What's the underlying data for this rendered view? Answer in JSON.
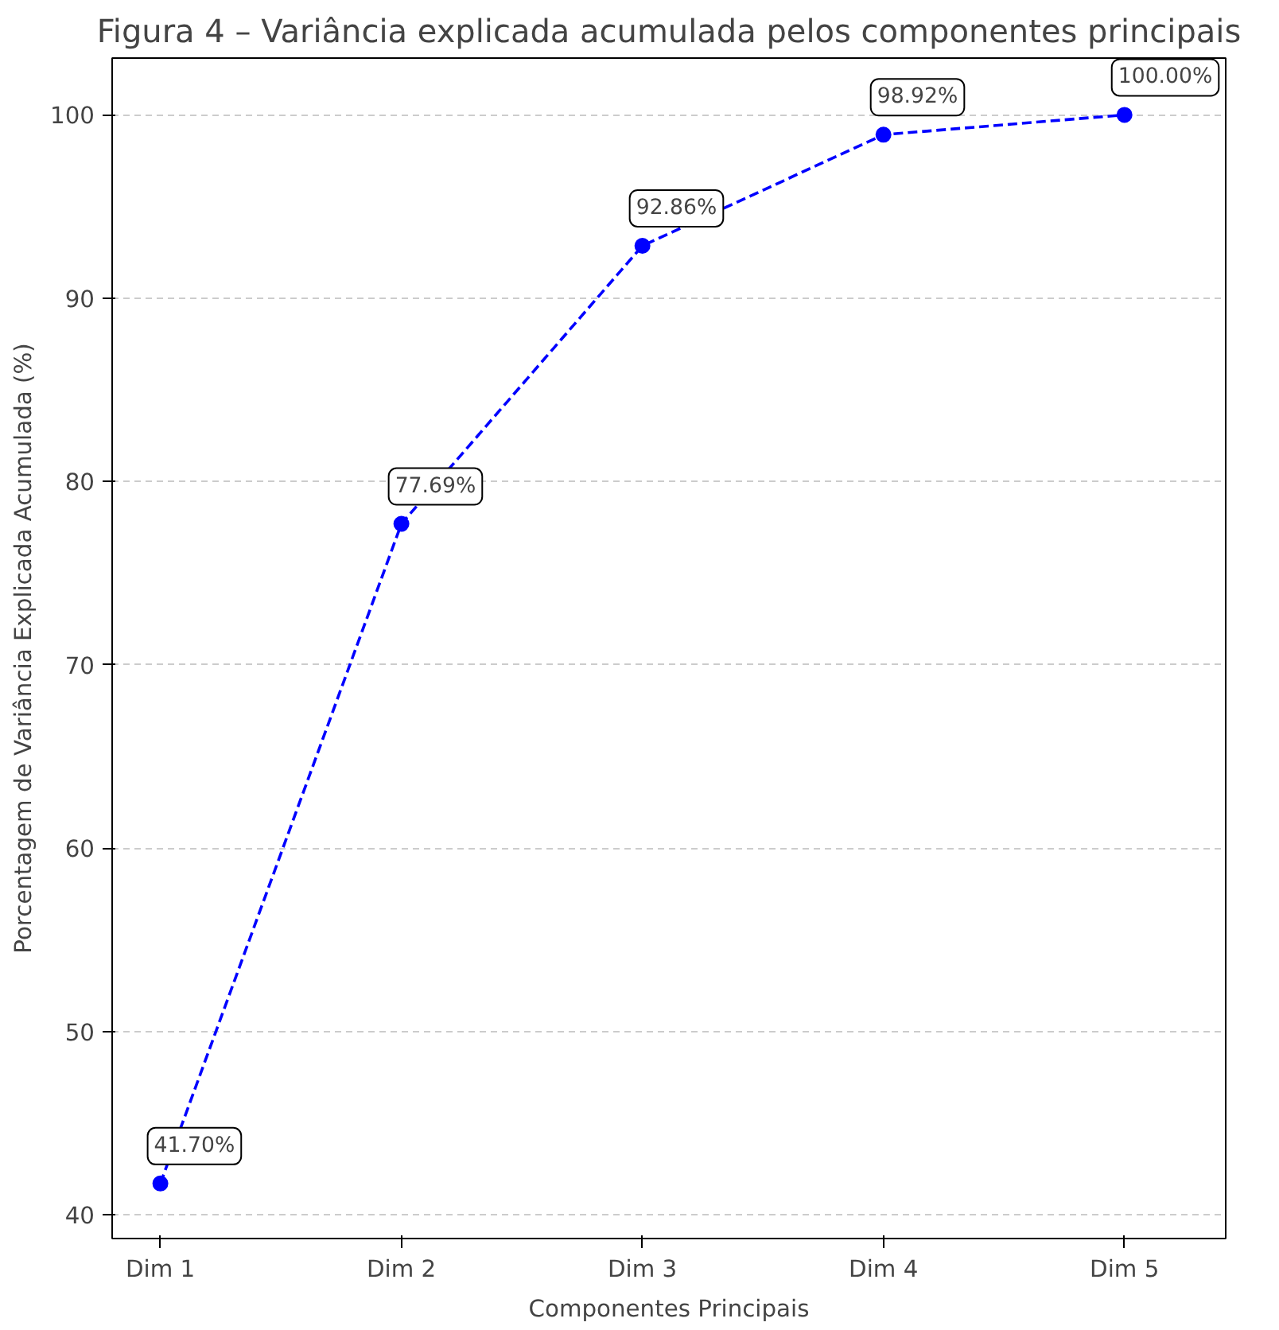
{
  "chart_data": {
    "type": "line",
    "title": "Figura 4 – Variância explicada acumulada pelos componentes principais",
    "xlabel": "Componentes Principais",
    "ylabel": "Porcentagem de Variância Explicada Acumulada (%)",
    "categories": [
      "Dim 1",
      "Dim 2",
      "Dim 3",
      "Dim 4",
      "Dim 5"
    ],
    "series": [
      {
        "color": "#0000ff",
        "values": [
          41.7,
          77.69,
          92.86,
          98.92,
          100.0
        ],
        "value_labels": [
          "41.70%",
          "77.69%",
          "92.86%",
          "98.92%",
          "100.00%"
        ]
      }
    ],
    "ylim": [
      38.7,
      103.1
    ],
    "yticks": [
      40,
      50,
      60,
      70,
      80,
      90,
      100
    ],
    "grid": "y",
    "marker": "circle",
    "line_style": "dashed"
  }
}
